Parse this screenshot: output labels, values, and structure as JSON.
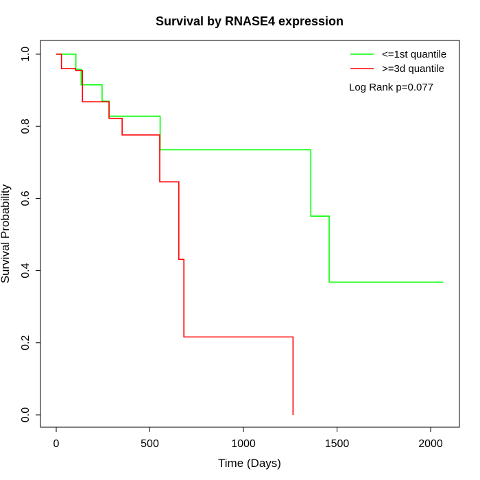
{
  "chart_data": {
    "type": "line",
    "title": "Survival by RNASE4 expression",
    "xlabel": "Time (Days)",
    "ylabel": "Survival Probability",
    "xlim": [
      0,
      2070
    ],
    "ylim": [
      0,
      1
    ],
    "x_ticks": [
      0,
      500,
      1000,
      1500,
      2000
    ],
    "y_ticks": [
      0.0,
      0.2,
      0.4,
      0.6,
      0.8,
      1.0
    ],
    "x_tick_labels": [
      "0",
      "500",
      "1000",
      "1500",
      "2000"
    ],
    "y_tick_labels": [
      "0.0",
      "0.2",
      "0.4",
      "0.6",
      "0.8",
      "1.0"
    ],
    "legend_position": "top-right",
    "annotation": "Log Rank p=0.077",
    "series": [
      {
        "name": "<=1st quantile",
        "color": "#00ff00",
        "steps": [
          [
            0,
            1.0
          ],
          [
            105,
            0.958
          ],
          [
            133,
            0.915
          ],
          [
            245,
            0.87
          ],
          [
            283,
            0.828
          ],
          [
            555,
            0.735
          ],
          [
            1360,
            0.551
          ],
          [
            1458,
            0.368
          ]
        ],
        "end": 2068
      },
      {
        "name": ">=3d quantile",
        "color": "#ff0000",
        "steps": [
          [
            0,
            1.0
          ],
          [
            28,
            0.96
          ],
          [
            103,
            0.955
          ],
          [
            140,
            0.868
          ],
          [
            282,
            0.822
          ],
          [
            352,
            0.776
          ],
          [
            553,
            0.646
          ],
          [
            655,
            0.431
          ],
          [
            682,
            0.216
          ],
          [
            1265,
            0.0
          ]
        ],
        "end": 1265
      }
    ]
  }
}
